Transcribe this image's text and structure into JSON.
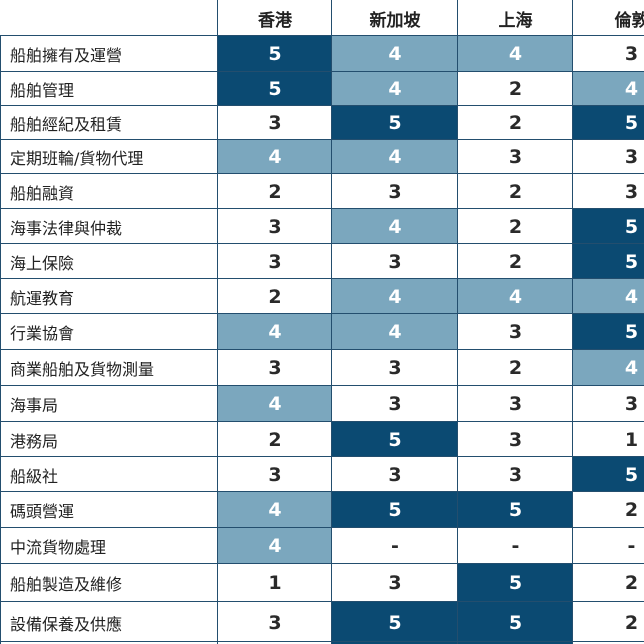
{
  "chart_data": {
    "type": "table",
    "columns": [
      "香港",
      "新加坡",
      "上海",
      "倫敦"
    ],
    "rows": [
      {
        "label": "船舶擁有及運營",
        "values": [
          "5",
          "4",
          "4",
          "3"
        ]
      },
      {
        "label": "船舶管理",
        "values": [
          "5",
          "4",
          "2",
          "4"
        ]
      },
      {
        "label": "船舶經紀及租賃",
        "values": [
          "3",
          "5",
          "2",
          "5"
        ]
      },
      {
        "label": "定期班輪/貨物代理",
        "values": [
          "4",
          "4",
          "3",
          "3"
        ]
      },
      {
        "label": "船舶融資",
        "values": [
          "2",
          "3",
          "2",
          "3"
        ]
      },
      {
        "label": "海事法律與仲裁",
        "values": [
          "3",
          "4",
          "2",
          "5"
        ]
      },
      {
        "label": "海上保險",
        "values": [
          "3",
          "3",
          "2",
          "5"
        ]
      },
      {
        "label": "航運教育",
        "values": [
          "2",
          "4",
          "4",
          "4"
        ]
      },
      {
        "label": "行業協會",
        "values": [
          "4",
          "4",
          "3",
          "5"
        ]
      },
      {
        "label": "商業船舶及貨物測量",
        "values": [
          "3",
          "3",
          "2",
          "4"
        ]
      },
      {
        "label": "海事局",
        "values": [
          "4",
          "3",
          "3",
          "3"
        ]
      },
      {
        "label": "港務局",
        "values": [
          "2",
          "5",
          "3",
          "1"
        ]
      },
      {
        "label": "船級社",
        "values": [
          "3",
          "3",
          "3",
          "5"
        ]
      },
      {
        "label": "碼頭營運",
        "values": [
          "4",
          "5",
          "5",
          "2"
        ]
      },
      {
        "label": "中流貨物處理",
        "values": [
          "4",
          "-",
          "-",
          "-"
        ]
      },
      {
        "label": "船舶製造及維修",
        "values": [
          "1",
          "3",
          "5",
          "2"
        ]
      },
      {
        "label": "設備保養及供應",
        "values": [
          "3",
          "5",
          "5",
          "2"
        ]
      }
    ],
    "colors": {
      "5": "#0b4a72",
      "4": "#7ba7be",
      "default": "#ffffff",
      "dark_text": "#ffffff",
      "light_text": "#ffffff",
      "plain_text": "#2a2a2a",
      "grid": "#234e6e"
    }
  }
}
